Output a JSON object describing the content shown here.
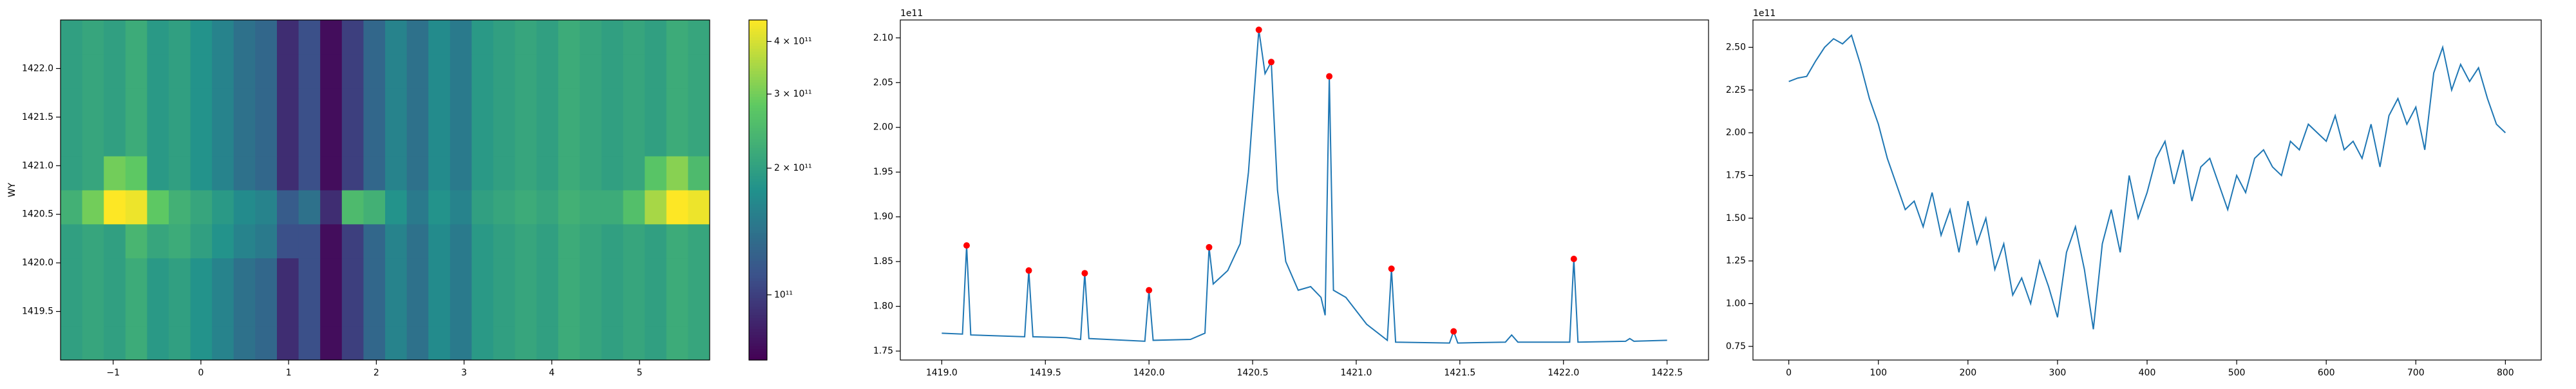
{
  "chart_data": [
    {
      "type": "heatmap",
      "ylabel": "WY",
      "colormap": "viridis",
      "xlim": [
        -1.6,
        5.8
      ],
      "ylim": [
        1419.0,
        1422.5
      ],
      "xticks": [
        {
          "value": -1,
          "label": "−1"
        },
        0,
        1,
        2,
        3,
        4,
        5
      ],
      "yticks": [
        1419.5,
        {
          "value": 1420.0,
          "label": "1420.0"
        },
        1420.5,
        {
          "value": 1421.0,
          "label": "1421.0"
        },
        1421.5,
        {
          "value": 1422.0,
          "label": "1422.0"
        }
      ],
      "z": [
        [
          200000000000.0,
          210000000000.0,
          200000000000.0,
          220000000000.0,
          190000000000.0,
          200000000000.0,
          180000000000.0,
          160000000000.0,
          140000000000.0,
          130000000000.0,
          90000000000.0,
          110000000000.0,
          75000000000.0,
          100000000000.0,
          130000000000.0,
          160000000000.0,
          140000000000.0,
          170000000000.0,
          150000000000.0,
          190000000000.0,
          200000000000.0,
          210000000000.0,
          200000000000.0,
          220000000000.0,
          210000000000.0,
          200000000000.0,
          210000000000.0,
          200000000000.0,
          220000000000.0,
          210000000000.0
        ],
        [
          200000000000.0,
          210000000000.0,
          200000000000.0,
          220000000000.0,
          190000000000.0,
          200000000000.0,
          180000000000.0,
          160000000000.0,
          140000000000.0,
          130000000000.0,
          90000000000.0,
          110000000000.0,
          75000000000.0,
          100000000000.0,
          130000000000.0,
          160000000000.0,
          140000000000.0,
          170000000000.0,
          150000000000.0,
          190000000000.0,
          200000000000.0,
          210000000000.0,
          200000000000.0,
          220000000000.0,
          210000000000.0,
          200000000000.0,
          210000000000.0,
          200000000000.0,
          220000000000.0,
          210000000000.0
        ],
        [
          200000000000.0,
          210000000000.0,
          200000000000.0,
          220000000000.0,
          190000000000.0,
          200000000000.0,
          180000000000.0,
          160000000000.0,
          140000000000.0,
          130000000000.0,
          90000000000.0,
          110000000000.0,
          75000000000.0,
          100000000000.0,
          130000000000.0,
          160000000000.0,
          140000000000.0,
          170000000000.0,
          150000000000.0,
          190000000000.0,
          200000000000.0,
          210000000000.0,
          200000000000.0,
          220000000000.0,
          210000000000.0,
          200000000000.0,
          210000000000.0,
          200000000000.0,
          220000000000.0,
          210000000000.0
        ],
        [
          200000000000.0,
          210000000000.0,
          200000000000.0,
          240000000000.0,
          210000000000.0,
          220000000000.0,
          200000000000.0,
          180000000000.0,
          160000000000.0,
          150000000000.0,
          110000000000.0,
          110000000000.0,
          75000000000.0,
          100000000000.0,
          130000000000.0,
          160000000000.0,
          140000000000.0,
          170000000000.0,
          150000000000.0,
          190000000000.0,
          200000000000.0,
          210000000000.0,
          200000000000.0,
          220000000000.0,
          210000000000.0,
          200000000000.0,
          210000000000.0,
          200000000000.0,
          220000000000.0,
          210000000000.0
        ],
        [
          230000000000.0,
          300000000000.0,
          450000000000.0,
          430000000000.0,
          280000000000.0,
          230000000000.0,
          210000000000.0,
          190000000000.0,
          170000000000.0,
          160000000000.0,
          120000000000.0,
          140000000000.0,
          90000000000.0,
          250000000000.0,
          230000000000.0,
          180000000000.0,
          150000000000.0,
          180000000000.0,
          160000000000.0,
          200000000000.0,
          210000000000.0,
          220000000000.0,
          210000000000.0,
          230000000000.0,
          220000000000.0,
          220000000000.0,
          260000000000.0,
          350000000000.0,
          450000000000.0,
          430000000000.0
        ],
        [
          200000000000.0,
          210000000000.0,
          300000000000.0,
          280000000000.0,
          190000000000.0,
          200000000000.0,
          180000000000.0,
          160000000000.0,
          140000000000.0,
          130000000000.0,
          90000000000.0,
          110000000000.0,
          75000000000.0,
          100000000000.0,
          130000000000.0,
          160000000000.0,
          140000000000.0,
          170000000000.0,
          150000000000.0,
          190000000000.0,
          200000000000.0,
          210000000000.0,
          200000000000.0,
          220000000000.0,
          210000000000.0,
          200000000000.0,
          210000000000.0,
          270000000000.0,
          320000000000.0,
          250000000000.0
        ],
        [
          200000000000.0,
          210000000000.0,
          200000000000.0,
          220000000000.0,
          190000000000.0,
          200000000000.0,
          180000000000.0,
          160000000000.0,
          140000000000.0,
          130000000000.0,
          90000000000.0,
          110000000000.0,
          75000000000.0,
          100000000000.0,
          130000000000.0,
          160000000000.0,
          140000000000.0,
          170000000000.0,
          150000000000.0,
          190000000000.0,
          200000000000.0,
          210000000000.0,
          200000000000.0,
          220000000000.0,
          210000000000.0,
          200000000000.0,
          210000000000.0,
          200000000000.0,
          220000000000.0,
          210000000000.0
        ],
        [
          200000000000.0,
          210000000000.0,
          200000000000.0,
          220000000000.0,
          190000000000.0,
          200000000000.0,
          180000000000.0,
          160000000000.0,
          140000000000.0,
          130000000000.0,
          90000000000.0,
          110000000000.0,
          75000000000.0,
          100000000000.0,
          130000000000.0,
          160000000000.0,
          140000000000.0,
          170000000000.0,
          150000000000.0,
          190000000000.0,
          200000000000.0,
          210000000000.0,
          200000000000.0,
          220000000000.0,
          210000000000.0,
          200000000000.0,
          210000000000.0,
          200000000000.0,
          220000000000.0,
          210000000000.0
        ],
        [
          200000000000.0,
          210000000000.0,
          200000000000.0,
          220000000000.0,
          190000000000.0,
          200000000000.0,
          180000000000.0,
          160000000000.0,
          140000000000.0,
          130000000000.0,
          90000000000.0,
          110000000000.0,
          75000000000.0,
          100000000000.0,
          130000000000.0,
          160000000000.0,
          140000000000.0,
          170000000000.0,
          150000000000.0,
          190000000000.0,
          200000000000.0,
          210000000000.0,
          200000000000.0,
          220000000000.0,
          210000000000.0,
          200000000000.0,
          210000000000.0,
          200000000000.0,
          220000000000.0,
          210000000000.0
        ],
        [
          200000000000.0,
          210000000000.0,
          200000000000.0,
          220000000000.0,
          190000000000.0,
          200000000000.0,
          180000000000.0,
          160000000000.0,
          140000000000.0,
          130000000000.0,
          90000000000.0,
          110000000000.0,
          75000000000.0,
          100000000000.0,
          130000000000.0,
          160000000000.0,
          140000000000.0,
          170000000000.0,
          150000000000.0,
          190000000000.0,
          200000000000.0,
          210000000000.0,
          200000000000.0,
          220000000000.0,
          210000000000.0,
          200000000000.0,
          210000000000.0,
          200000000000.0,
          220000000000.0,
          210000000000.0
        ]
      ],
      "colorbar": {
        "log_scale": true,
        "lim": [
          70000000000.0,
          450000000000.0
        ],
        "ticks": [
          {
            "value": 100000000000.0,
            "label": "10¹¹"
          },
          {
            "value": 200000000000.0,
            "label": "2 × 10¹¹"
          },
          {
            "value": 300000000000.0,
            "label": "3 × 10¹¹"
          },
          {
            "value": 400000000000.0,
            "label": "4 × 10¹¹"
          }
        ]
      }
    },
    {
      "type": "line",
      "offset_label": "1e11",
      "xlim": [
        1418.8,
        1422.7
      ],
      "ylim": [
        1.74,
        2.12
      ],
      "xticks": [
        {
          "value": 1419.0,
          "label": "1419.0"
        },
        1419.5,
        {
          "value": 1420.0,
          "label": "1420.0"
        },
        1420.5,
        {
          "value": 1421.0,
          "label": "1421.0"
        },
        1421.5,
        {
          "value": 1422.0,
          "label": "1422.0"
        },
        1422.5
      ],
      "yticks": [
        1.75,
        {
          "value": 1.8,
          "label": "1.80"
        },
        1.85,
        {
          "value": 1.9,
          "label": "1.90"
        },
        1.95,
        {
          "value": 2.0,
          "label": "2.00"
        },
        2.05,
        {
          "value": 2.1,
          "label": "2.10"
        }
      ],
      "x": [
        1419.0,
        1419.1,
        1419.12,
        1419.14,
        1419.4,
        1419.42,
        1419.44,
        1419.6,
        1419.67,
        1419.69,
        1419.71,
        1419.98,
        1420.0,
        1420.02,
        1420.2,
        1420.27,
        1420.29,
        1420.31,
        1420.38,
        1420.44,
        1420.48,
        1420.53,
        1420.56,
        1420.59,
        1420.62,
        1420.66,
        1420.72,
        1420.78,
        1420.83,
        1420.85,
        1420.87,
        1420.89,
        1420.95,
        1421.05,
        1421.15,
        1421.17,
        1421.19,
        1421.45,
        1421.47,
        1421.49,
        1421.72,
        1421.75,
        1421.78,
        1422.03,
        1422.05,
        1422.07,
        1422.3,
        1422.32,
        1422.34,
        1422.5
      ],
      "values": [
        1.77,
        1.769,
        1.868,
        1.768,
        1.766,
        1.84,
        1.766,
        1.765,
        1.763,
        1.837,
        1.764,
        1.761,
        1.818,
        1.762,
        1.763,
        1.77,
        1.866,
        1.825,
        1.84,
        1.87,
        1.95,
        2.109,
        2.06,
        2.073,
        1.93,
        1.85,
        1.818,
        1.822,
        1.81,
        1.79,
        2.057,
        1.818,
        1.81,
        1.78,
        1.762,
        1.842,
        1.76,
        1.759,
        1.772,
        1.759,
        1.76,
        1.768,
        1.76,
        1.76,
        1.853,
        1.76,
        1.761,
        1.764,
        1.761,
        1.762
      ],
      "color": "#1f77b4",
      "peaks": {
        "color": "#ff0000",
        "x": [
          1419.12,
          1419.42,
          1419.69,
          1420.0,
          1420.29,
          1420.53,
          1420.59,
          1420.87,
          1421.17,
          1421.47,
          1422.05
        ],
        "values": [
          1.868,
          1.84,
          1.837,
          1.818,
          1.866,
          2.109,
          2.073,
          2.057,
          1.842,
          1.772,
          1.853
        ]
      }
    },
    {
      "type": "line",
      "offset_label": "1e11",
      "xlim": [
        -40,
        840
      ],
      "ylim": [
        0.67,
        2.66
      ],
      "xticks": [
        0,
        100,
        200,
        300,
        400,
        500,
        600,
        700,
        800
      ],
      "yticks": [
        0.75,
        {
          "value": 1.0,
          "label": "1.00"
        },
        1.25,
        {
          "value": 1.5,
          "label": "1.50"
        },
        1.75,
        {
          "value": 2.0,
          "label": "2.00"
        },
        2.25,
        {
          "value": 2.5,
          "label": "2.50"
        }
      ],
      "x": [
        0,
        10,
        20,
        30,
        40,
        50,
        60,
        70,
        80,
        90,
        100,
        110,
        120,
        130,
        140,
        150,
        160,
        170,
        180,
        190,
        200,
        210,
        220,
        230,
        240,
        250,
        260,
        270,
        280,
        290,
        300,
        310,
        320,
        330,
        340,
        350,
        360,
        370,
        380,
        390,
        400,
        410,
        420,
        430,
        440,
        450,
        460,
        470,
        480,
        490,
        500,
        510,
        520,
        530,
        540,
        550,
        560,
        570,
        580,
        590,
        600,
        610,
        620,
        630,
        640,
        650,
        660,
        670,
        680,
        690,
        700,
        710,
        720,
        730,
        740,
        750,
        760,
        770,
        780,
        790,
        800
      ],
      "values": [
        2.3,
        2.32,
        2.33,
        2.42,
        2.5,
        2.55,
        2.52,
        2.57,
        2.4,
        2.2,
        2.05,
        1.85,
        1.7,
        1.55,
        1.6,
        1.45,
        1.65,
        1.4,
        1.55,
        1.3,
        1.6,
        1.35,
        1.5,
        1.2,
        1.35,
        1.05,
        1.15,
        1.0,
        1.25,
        1.1,
        0.92,
        1.3,
        1.45,
        1.2,
        0.85,
        1.35,
        1.55,
        1.3,
        1.75,
        1.5,
        1.65,
        1.85,
        1.95,
        1.7,
        1.9,
        1.6,
        1.8,
        1.85,
        1.7,
        1.55,
        1.75,
        1.65,
        1.85,
        1.9,
        1.8,
        1.75,
        1.95,
        1.9,
        2.05,
        2.0,
        1.95,
        2.1,
        1.9,
        1.95,
        1.85,
        2.05,
        1.8,
        2.1,
        2.2,
        2.05,
        2.15,
        1.9,
        2.35,
        2.5,
        2.25,
        2.4,
        2.3,
        2.38,
        2.2,
        2.05,
        2.0
      ],
      "color": "#1f77b4"
    }
  ]
}
